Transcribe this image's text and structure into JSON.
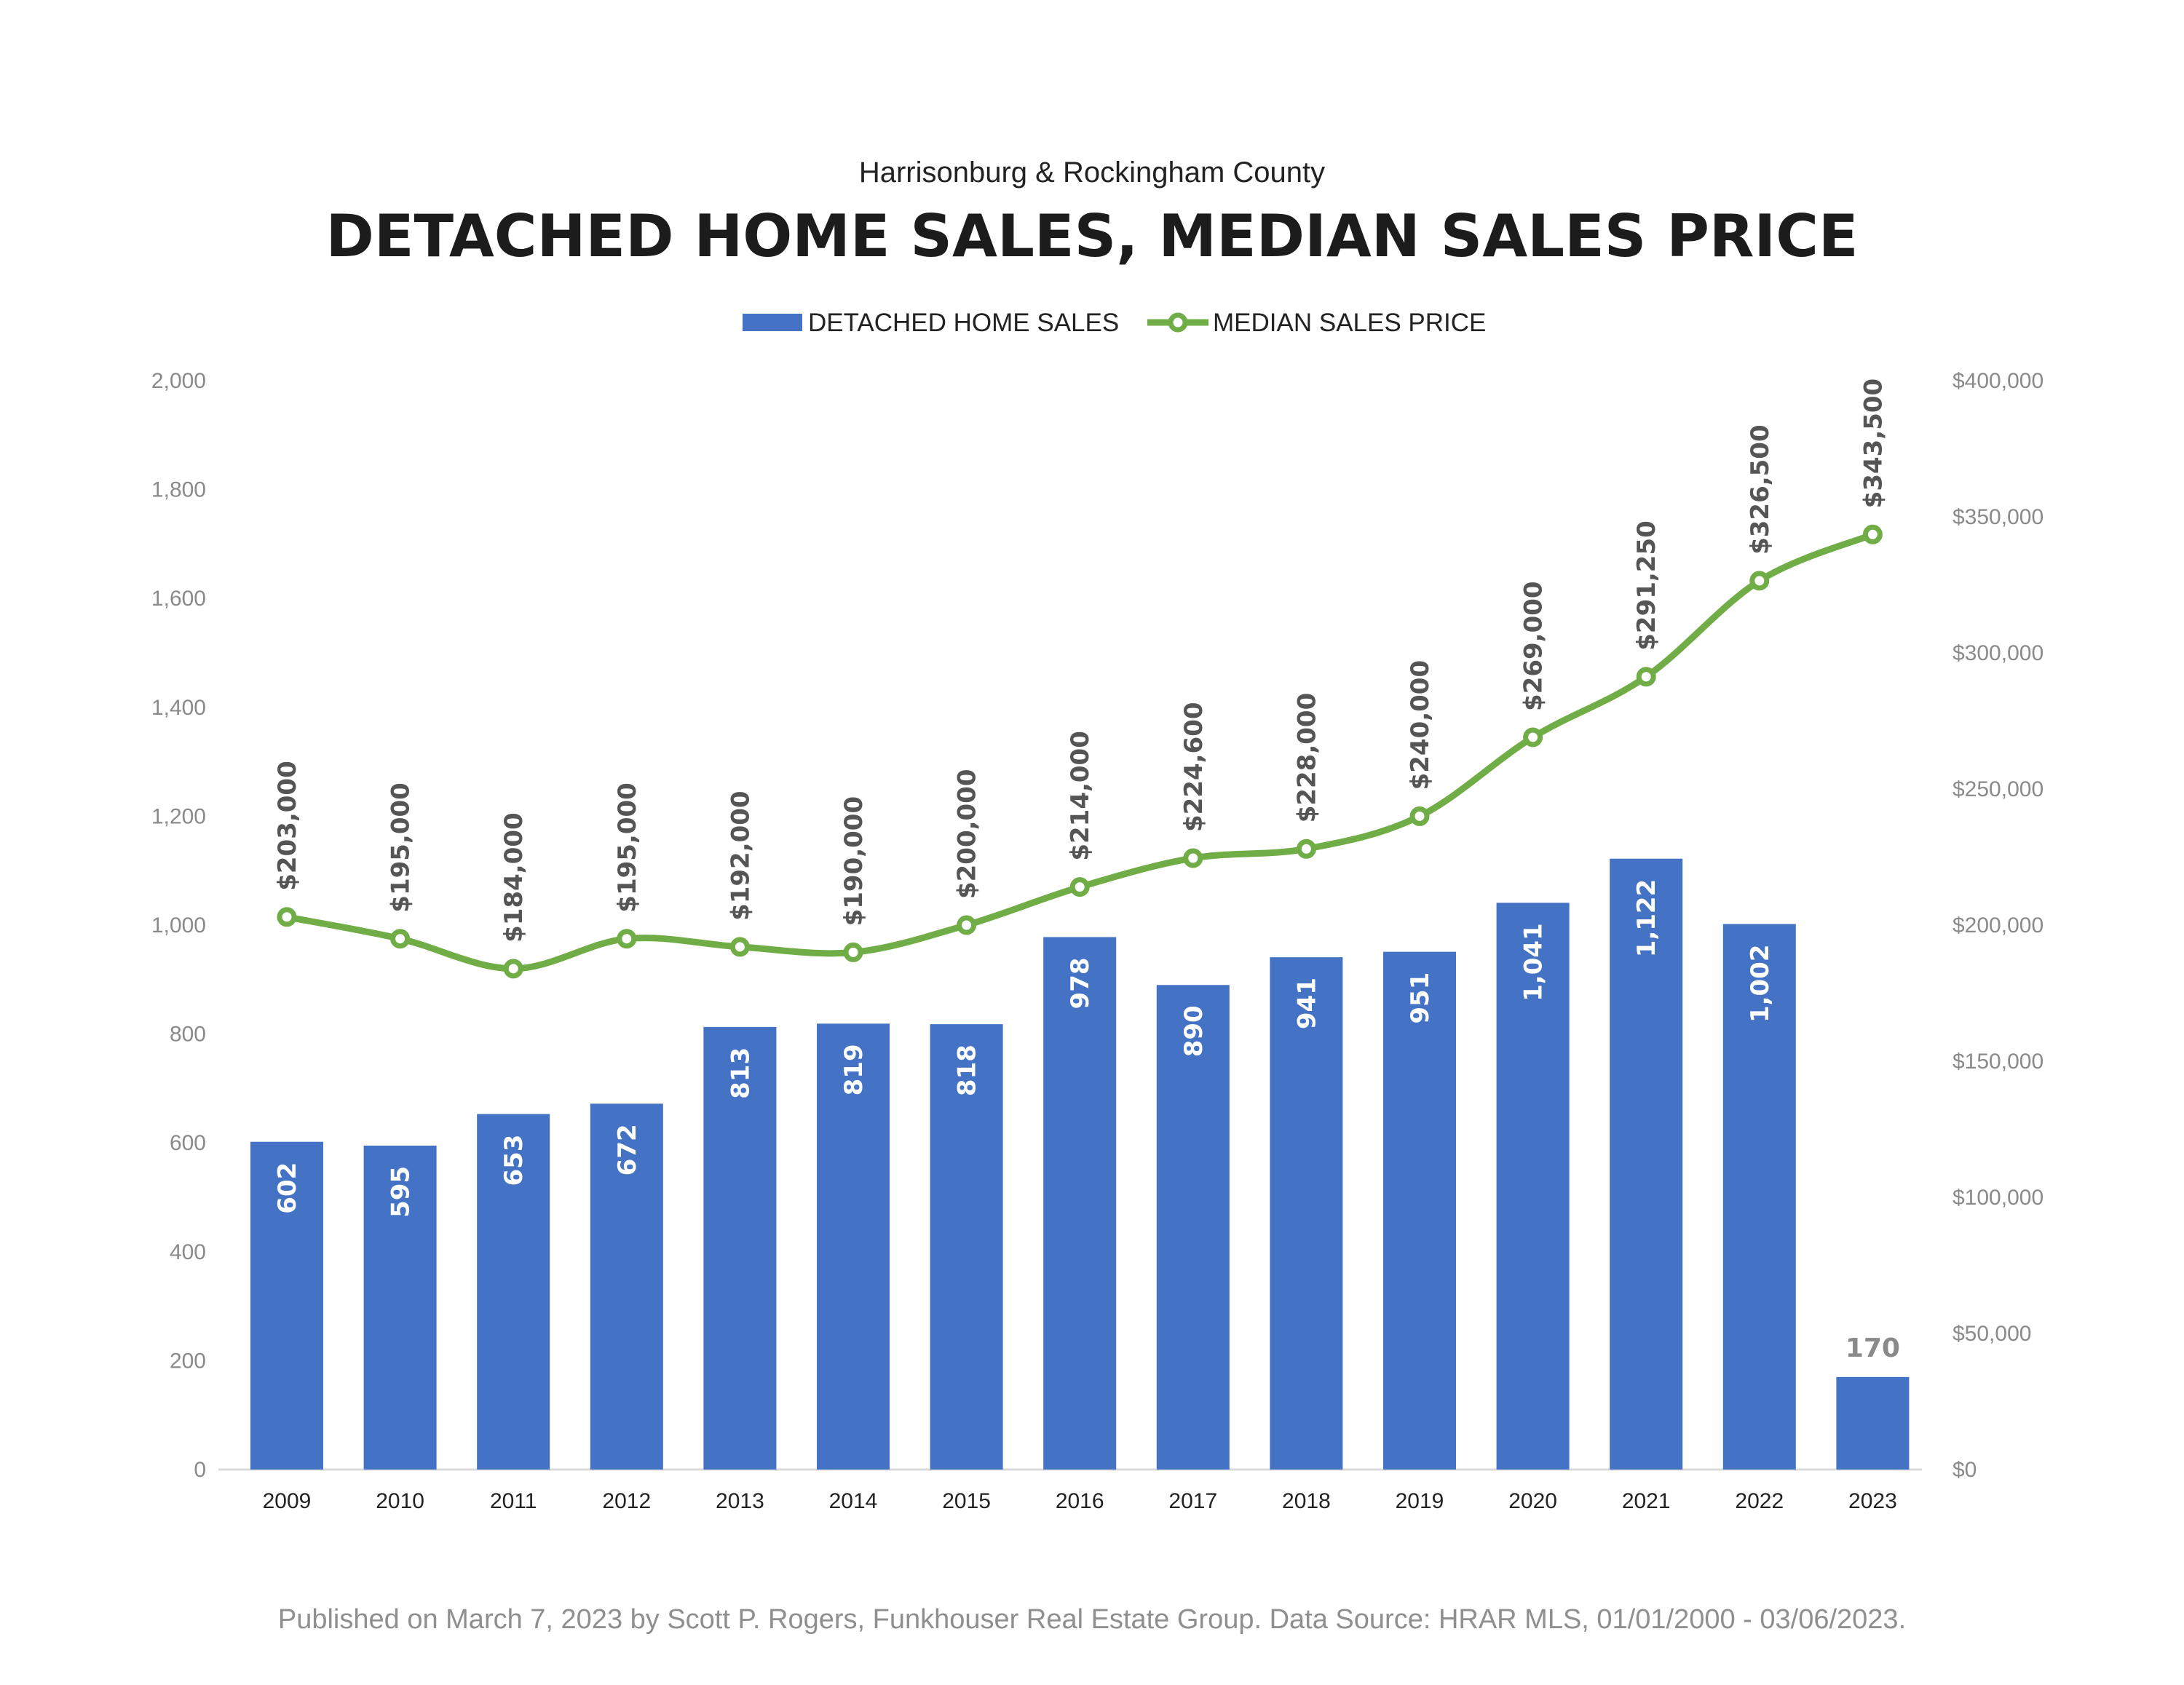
{
  "chart_data": {
    "type": "bar",
    "subtitle": "Harrisonburg & Rockingham County",
    "title": "DETACHED HOME SALES, MEDIAN SALES PRICE",
    "categories": [
      "2009",
      "2010",
      "2011",
      "2012",
      "2013",
      "2014",
      "2015",
      "2016",
      "2017",
      "2018",
      "2019",
      "2020",
      "2021",
      "2022",
      "2023"
    ],
    "series": [
      {
        "name": "DETACHED HOME SALES",
        "type": "bar",
        "axis": "left",
        "color": "#4472c4",
        "values": [
          602,
          595,
          653,
          672,
          813,
          819,
          818,
          978,
          890,
          941,
          951,
          1041,
          1122,
          1002,
          170
        ],
        "labels": [
          "602",
          "595",
          "653",
          "672",
          "813",
          "819",
          "818",
          "978",
          "890",
          "941",
          "951",
          "1,041",
          "1,122",
          "1,002",
          "170"
        ]
      },
      {
        "name": "MEDIAN SALES PRICE",
        "type": "line",
        "axis": "right",
        "color": "#70ad47",
        "values": [
          203000,
          195000,
          184000,
          195000,
          192000,
          190000,
          200000,
          214000,
          224600,
          228000,
          240000,
          269000,
          291250,
          326500,
          343500
        ],
        "labels": [
          "$203,000",
          "$195,000",
          "$184,000",
          "$195,000",
          "$192,000",
          "$190,000",
          "$200,000",
          "$214,000",
          "$224,600",
          "$228,000",
          "$240,000",
          "$269,000",
          "$291,250",
          "$326,500",
          "$343,500"
        ]
      }
    ],
    "y_left": {
      "min": 0,
      "max": 2000,
      "ticks": [
        0,
        200,
        400,
        600,
        800,
        1000,
        1200,
        1400,
        1600,
        1800,
        2000
      ],
      "tick_labels": [
        "0",
        "200",
        "400",
        "600",
        "800",
        "1,000",
        "1,200",
        "1,400",
        "1,600",
        "1,800",
        "2,000"
      ]
    },
    "y_right": {
      "min": 0,
      "max": 400000,
      "ticks": [
        0,
        50000,
        100000,
        150000,
        200000,
        250000,
        300000,
        350000,
        400000
      ],
      "tick_labels": [
        "$0",
        "$50,000",
        "$100,000",
        "$150,000",
        "$200,000",
        "$250,000",
        "$300,000",
        "$350,000",
        "$400,000"
      ]
    },
    "grid": false,
    "legend_position": "top-center",
    "footer": "Published on March 7, 2023 by Scott P. Rogers, Funkhouser Real Estate Group. Data Source: HRAR MLS, 01/01/2000 - 03/06/2023."
  }
}
